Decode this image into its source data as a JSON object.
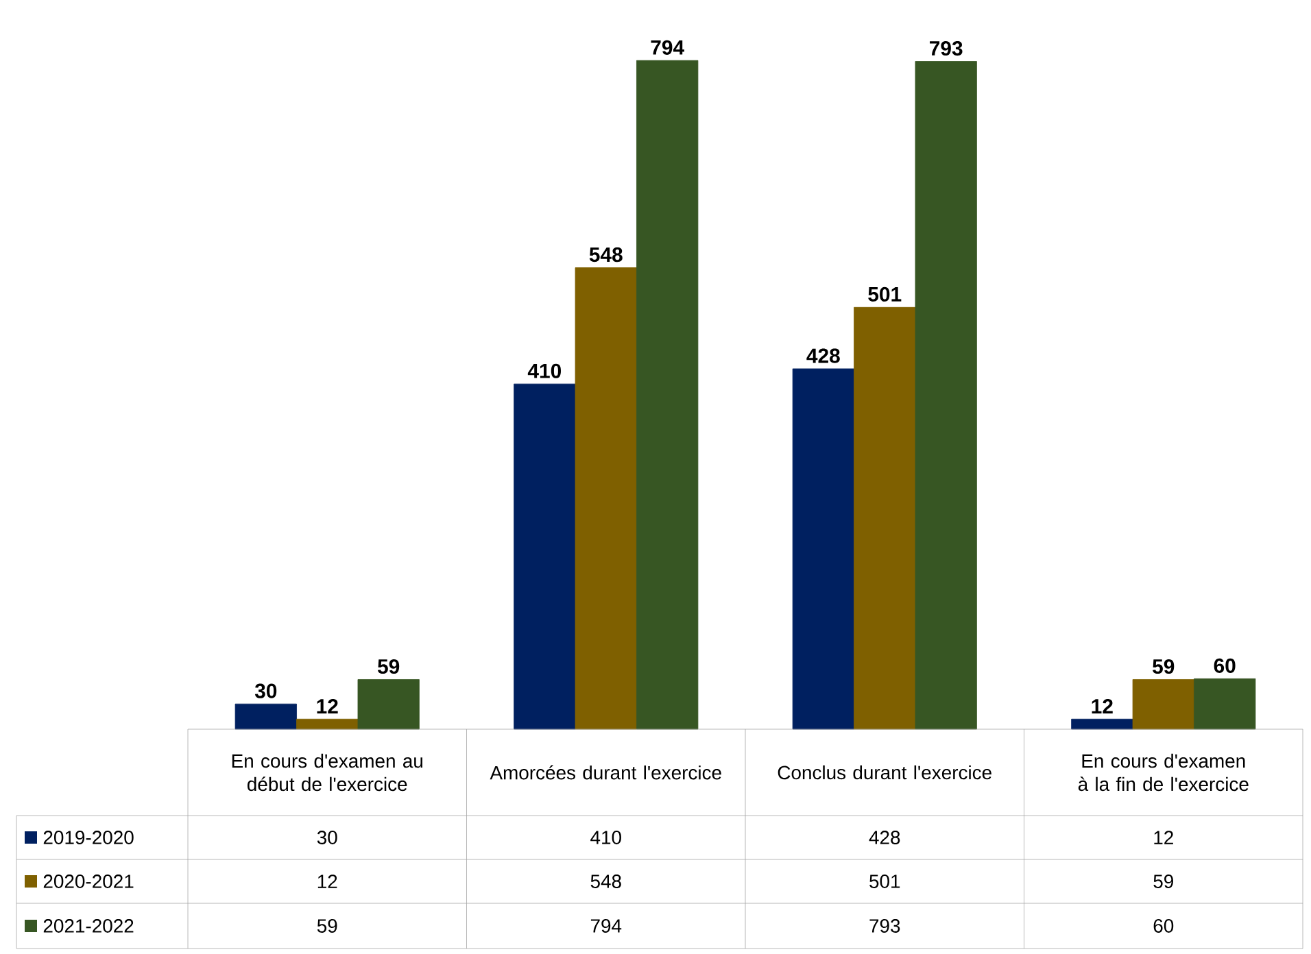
{
  "chart_data": {
    "type": "bar",
    "categories": [
      "En cours d'examen au début de l'exercice",
      "Amorcées durant l'exercice",
      "Conclus durant l'exercice",
      "En cours d'examen à la fin de l'exercice"
    ],
    "series": [
      {
        "name": "2019-2020",
        "color": "#002060",
        "values": [
          30,
          410,
          428,
          12
        ],
        "value_labels": [
          "30",
          "410",
          "428",
          "12"
        ]
      },
      {
        "name": "2020-2021",
        "color": "#7f6000",
        "values": [
          12,
          548,
          501,
          59
        ],
        "value_labels": [
          "12",
          "548",
          "501",
          "59"
        ]
      },
      {
        "name": "2021-2022",
        "color": "#375623",
        "values": [
          59,
          794,
          793,
          60
        ],
        "value_labels": [
          "59",
          "794",
          "793",
          "60"
        ]
      }
    ],
    "data_labels": true,
    "legend": "bottom"
  }
}
